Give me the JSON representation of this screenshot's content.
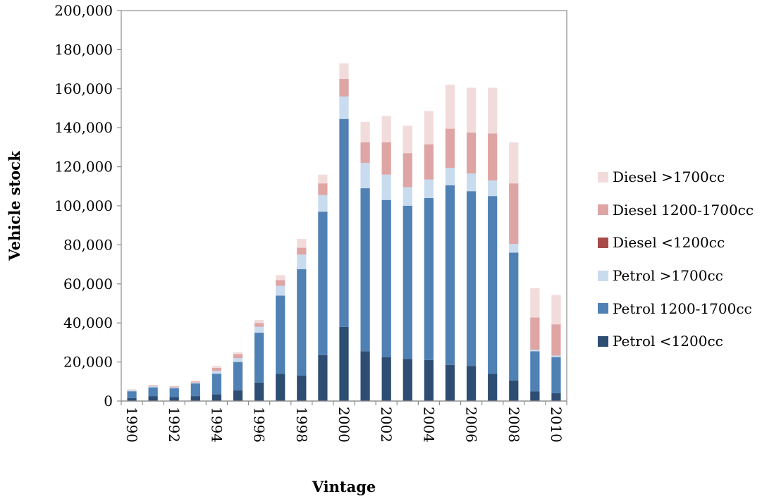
{
  "chart_data": {
    "type": "bar",
    "stacked": true,
    "xlabel": "Vintage",
    "ylabel": "Vehicle stock",
    "ylim": [
      0,
      200000
    ],
    "ytick_step": 20000,
    "ytick_labels": [
      "0",
      "20,000",
      "40,000",
      "60,000",
      "80,000",
      "100,000",
      "120,000",
      "140,000",
      "160,000",
      "180,000",
      "200,000"
    ],
    "grid": false,
    "legend_position": "right",
    "categories": [
      "1990",
      "1991",
      "1992",
      "1993",
      "1994",
      "1995",
      "1996",
      "1997",
      "1998",
      "1999",
      "2000",
      "2001",
      "2002",
      "2003",
      "2004",
      "2005",
      "2006",
      "2007",
      "2008",
      "2009",
      "2010"
    ],
    "x_tick_labels": [
      "1990",
      "",
      "1992",
      "",
      "1994",
      "",
      "1996",
      "",
      "1998",
      "",
      "2000",
      "",
      "2002",
      "",
      "2004",
      "",
      "2006",
      "",
      "2008",
      "",
      "2010"
    ],
    "series": [
      {
        "name": "Petrol <1200cc",
        "color": "#2e4d73",
        "values": [
          1500,
          2500,
          2000,
          2500,
          3500,
          5500,
          9500,
          14000,
          13000,
          23500,
          38000,
          25500,
          22500,
          21500,
          21000,
          18500,
          18000,
          14000,
          10500,
          5000,
          4000
        ]
      },
      {
        "name": "Petrol 1200-1700cc",
        "color": "#4f81b4",
        "values": [
          3500,
          4500,
          4500,
          6500,
          10500,
          14500,
          25500,
          40000,
          54500,
          73500,
          106500,
          83500,
          80500,
          78500,
          83000,
          92000,
          89500,
          91000,
          65500,
          20500,
          18500
        ]
      },
      {
        "name": "Petrol >1700cc",
        "color": "#c9dbef",
        "values": [
          500,
          500,
          500,
          500,
          1500,
          2000,
          3000,
          5000,
          7500,
          8500,
          11500,
          13000,
          13000,
          9500,
          9500,
          9000,
          9000,
          8000,
          4500,
          800,
          800
        ]
      },
      {
        "name": "Diesel <1200cc",
        "color": "#a84a48",
        "values": [
          0,
          0,
          0,
          0,
          0,
          0,
          0,
          0,
          0,
          0,
          0,
          0,
          0,
          0,
          0,
          0,
          0,
          0,
          0,
          0,
          0
        ]
      },
      {
        "name": "Diesel 1200-1700cc",
        "color": "#dea5a4",
        "values": [
          200,
          400,
          400,
          500,
          1500,
          2000,
          2000,
          3000,
          3500,
          6000,
          9000,
          10500,
          16500,
          17500,
          18000,
          20000,
          21000,
          24000,
          31000,
          16500,
          16000
        ]
      },
      {
        "name": "Diesel >1700cc",
        "color": "#f2dcdb",
        "values": [
          300,
          300,
          300,
          500,
          1000,
          1000,
          1500,
          2500,
          4500,
          4500,
          8000,
          10500,
          13500,
          14000,
          17000,
          22500,
          23000,
          23500,
          21000,
          15000,
          15000
        ]
      }
    ]
  }
}
